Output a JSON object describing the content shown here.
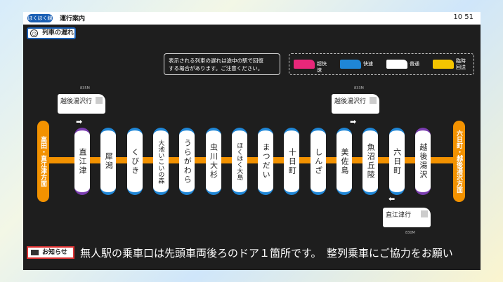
{
  "header": {
    "logo": "ほくほく線",
    "title": "運行案内",
    "time": "10 51"
  },
  "section_label": "列車の遅れ",
  "notice": [
    "表示される列車の遅れは途中の駅で回復",
    "する場合があります。ご注意ください。"
  ],
  "legend": [
    {
      "label": "超快速",
      "color": "#e8277a"
    },
    {
      "label": "快速",
      "color": "#1f86d6"
    },
    {
      "label": "普通",
      "color": "#ffffff"
    },
    {
      "label": "臨時回送",
      "color": "#f4c400"
    }
  ],
  "terminals": {
    "left": "高田・直江津方面",
    "right": "六日町・越後湯沢方面"
  },
  "stations": [
    "直江津",
    "犀潟",
    "くびき",
    "大池いこいの森",
    "うらがわら",
    "虫川大杉",
    "ほくほく大島",
    "まつだい",
    "十日町",
    "しんざ",
    "美佐島",
    "魚沼丘陵",
    "六日町",
    "越後湯沢"
  ],
  "trains": [
    {
      "number": "835M",
      "destination": "越後湯沢行"
    },
    {
      "number": "833M",
      "destination": "越後湯沢行"
    },
    {
      "number": "830M",
      "destination": "直江津行"
    }
  ],
  "ticker": {
    "label": "お知らせ",
    "text": "無人駅の乗車口は先頭車両後ろのドア１箇所です。　整列乗車にご協力をお願い"
  }
}
